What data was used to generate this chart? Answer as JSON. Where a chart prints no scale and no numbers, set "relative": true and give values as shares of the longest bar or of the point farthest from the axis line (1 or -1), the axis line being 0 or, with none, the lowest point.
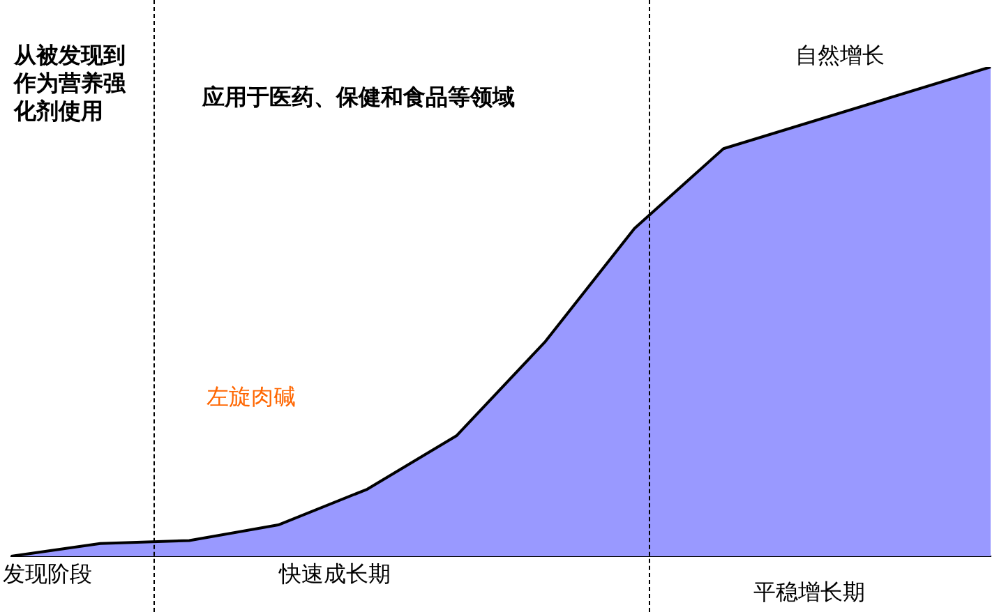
{
  "chart_data": {
    "type": "area",
    "relative": true,
    "categories": [
      null,
      null,
      null,
      null,
      null,
      null,
      null,
      null,
      null,
      null,
      null,
      null
    ],
    "series": [
      {
        "color": "#9999ff",
        "values": [
          0,
          0.026,
          0.032,
          0.064,
          0.137,
          0.246,
          0.439,
          0.67,
          0.833,
          null,
          null,
          1
        ]
      }
    ],
    "annotations": [
      "从被发现到作为营养强化剂使用",
      "应用于医药、保健和食品等领域",
      "自然增长",
      "左旋肉碱",
      "发现阶段",
      "快速成长期",
      "平稳增长期"
    ],
    "legend": false,
    "grid": false
  }
}
